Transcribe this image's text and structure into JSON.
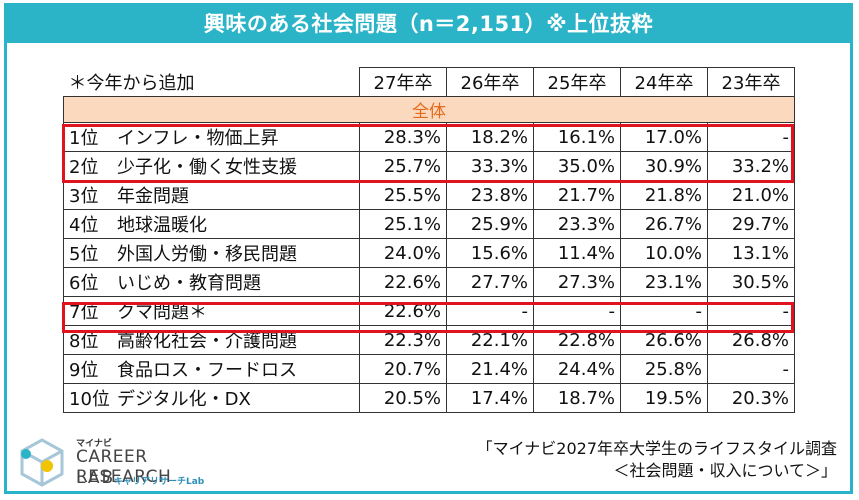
{
  "title": "興味のある社会問題（n＝2,151）※上位抜粋",
  "table": {
    "note": "＊今年から追加",
    "columns": [
      "27年卒",
      "26年卒",
      "25年卒",
      "24年卒",
      "23年卒"
    ],
    "section": "全体",
    "rows": [
      {
        "rank": "1位",
        "label": "インフレ・物価上昇",
        "values": [
          "28.3%",
          "18.2%",
          "16.1%",
          "17.0%",
          "-"
        ]
      },
      {
        "rank": "2位",
        "label": "少子化・働く女性支援",
        "values": [
          "25.7%",
          "33.3%",
          "35.0%",
          "30.9%",
          "33.2%"
        ]
      },
      {
        "rank": "3位",
        "label": "年金問題",
        "values": [
          "25.5%",
          "23.8%",
          "21.7%",
          "21.8%",
          "21.0%"
        ]
      },
      {
        "rank": "4位",
        "label": "地球温暖化",
        "values": [
          "25.1%",
          "25.9%",
          "23.3%",
          "26.7%",
          "29.7%"
        ]
      },
      {
        "rank": "5位",
        "label": "外国人労働・移民問題",
        "values": [
          "24.0%",
          "15.6%",
          "11.4%",
          "10.0%",
          "13.1%"
        ]
      },
      {
        "rank": "6位",
        "label": "いじめ・教育問題",
        "values": [
          "22.6%",
          "27.7%",
          "27.3%",
          "23.1%",
          "30.5%"
        ]
      },
      {
        "rank": "7位",
        "label": "クマ問題＊",
        "values": [
          "22.6%",
          "-",
          "-",
          "-",
          "-"
        ]
      },
      {
        "rank": "8位",
        "label": "高齢化社会・介護問題",
        "values": [
          "22.3%",
          "22.1%",
          "22.8%",
          "26.6%",
          "26.8%"
        ]
      },
      {
        "rank": "9位",
        "label": "食品ロス・フードロス",
        "values": [
          "20.7%",
          "21.4%",
          "24.4%",
          "25.8%",
          "-"
        ]
      },
      {
        "rank": "10位",
        "label": "デジタル化・DX",
        "values": [
          "20.5%",
          "17.4%",
          "18.7%",
          "19.5%",
          "20.3%"
        ]
      }
    ]
  },
  "logo": {
    "brand": "マイナビ",
    "line1": "CAREER RESEARCH",
    "line2": "LAB",
    "sub": "キャリアリサーチLab"
  },
  "source": {
    "line1": "「マイナビ2027年卒大学生のライフスタイル調査",
    "line2": "＜社会問題・収入について＞」"
  },
  "colors": {
    "title_bg": "#2bb3c7",
    "section_bg": "#fbd9bf",
    "section_text": "#e36a1c",
    "highlight": "#e0141e"
  }
}
